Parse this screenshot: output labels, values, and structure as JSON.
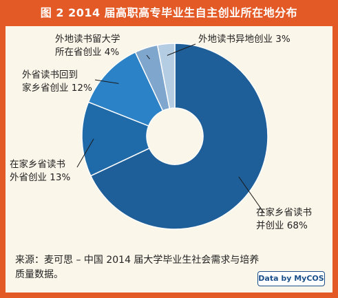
{
  "figure": {
    "title": "图 2  2014 届高职高专毕业生自主创业所在地分布",
    "source_line1": "来源：麦可思 – 中国 2014 届大学毕业生社会需求与培养",
    "source_line2": "质量数据。",
    "badge": "Data by MyCOS"
  },
  "chart_data": {
    "type": "pie",
    "title": "图 2  2014 届高职高专毕业生自主创业所在地分布",
    "donut": true,
    "unit": "%",
    "slices": [
      {
        "label_line1": "在家乡省读书",
        "label_line2": "并创业",
        "value": 68,
        "value_text": "68%",
        "color": "#1f5f99"
      },
      {
        "label_line1": "在家乡省读书",
        "label_line2": "外省创业",
        "value": 13,
        "value_text": "13%",
        "color": "#1f6aa8"
      },
      {
        "label_line1": "外省读书回到",
        "label_line2": "家乡省创业",
        "value": 12,
        "value_text": "12%",
        "color": "#2b82c6"
      },
      {
        "label_line1": "外地读书留大学",
        "label_line2": "所在省创业",
        "value": 4,
        "value_text": "4%",
        "color": "#7fa6cc"
      },
      {
        "label_line1": "外地读书异地创业",
        "label_line2": "",
        "value": 3,
        "value_text": "3%",
        "color": "#b5cde3"
      }
    ]
  }
}
